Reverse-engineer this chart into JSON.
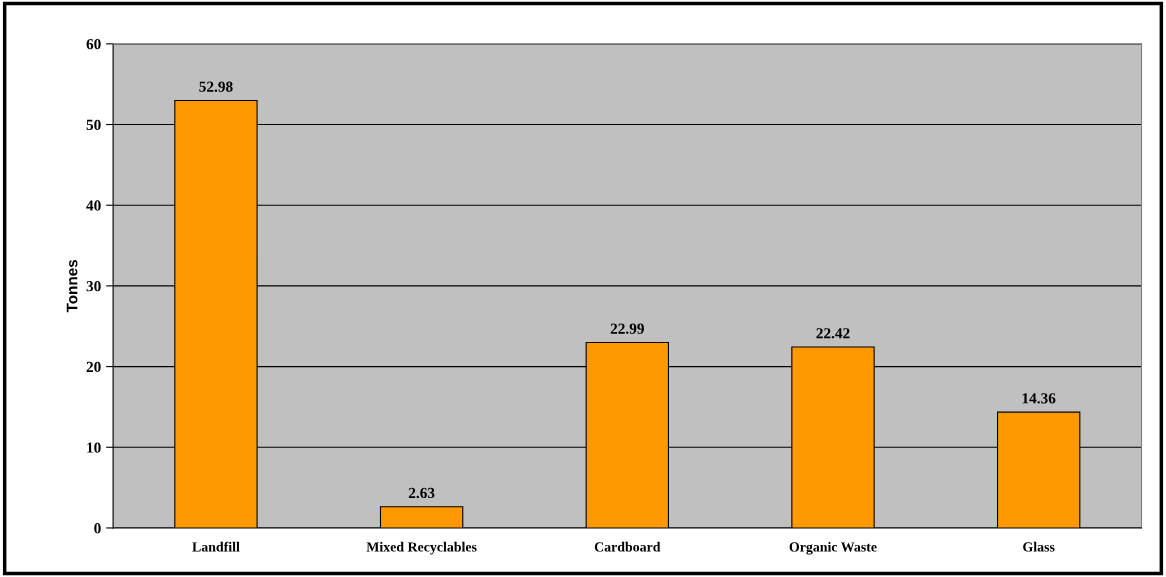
{
  "chart_data": {
    "type": "bar",
    "ylabel": "Tonnes",
    "categories": [
      "Landfill",
      "Mixed Recyclables",
      "Cardboard",
      "Organic Waste",
      "Glass"
    ],
    "values": [
      52.98,
      2.63,
      22.99,
      22.42,
      14.36
    ],
    "color": "#ff9900",
    "ylim": [
      0,
      60
    ],
    "yticks": [
      0,
      10,
      20,
      30,
      40,
      50,
      60
    ],
    "grid": "y",
    "data_labels": true
  }
}
